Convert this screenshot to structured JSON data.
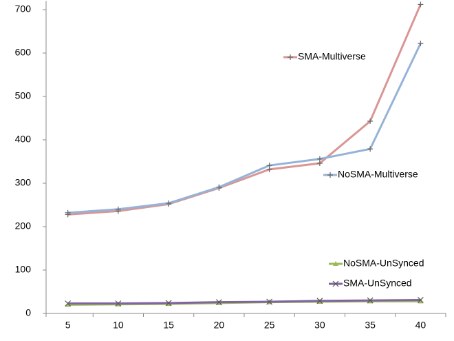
{
  "chart_data": {
    "type": "line",
    "categories": [
      "5",
      "10",
      "15",
      "20",
      "25",
      "30",
      "35",
      "40"
    ],
    "series": [
      {
        "name": "SMA-Multiverse",
        "color": "#d99694",
        "marker": "plus",
        "values": [
          228,
          236,
          252,
          289,
          332,
          346,
          443,
          712
        ]
      },
      {
        "name": "NoSMA-Multiverse",
        "color": "#95b3d7",
        "marker": "plus",
        "values": [
          232,
          240,
          254,
          291,
          341,
          356,
          379,
          622
        ]
      },
      {
        "name": "NoSMA-UnSynced",
        "color": "#9bbb59",
        "marker": "triangle",
        "values": [
          20,
          21,
          22,
          24,
          26,
          27,
          28,
          28
        ]
      },
      {
        "name": "SMA-UnSynced",
        "color": "#8064a2",
        "marker": "x",
        "values": [
          23,
          23,
          24,
          26,
          27,
          29,
          30,
          31
        ]
      }
    ],
    "ylim": [
      0,
      720
    ],
    "yticks": [
      0,
      100,
      200,
      300,
      400,
      500,
      600,
      700
    ],
    "grid": false
  }
}
